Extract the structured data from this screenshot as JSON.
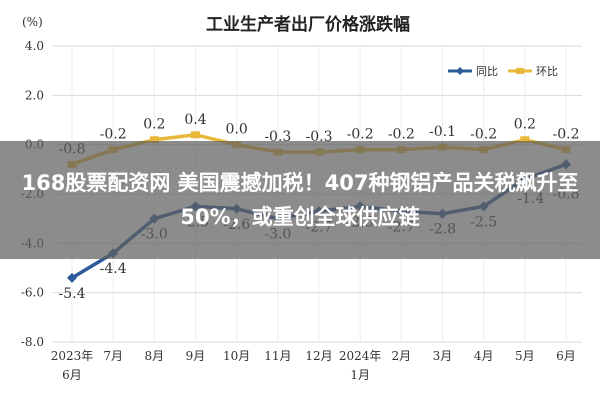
{
  "chart_data": {
    "type": "line",
    "title": "工业生产者出厂价格涨跌幅",
    "ylabel": "(%)",
    "ylim": [
      -8.0,
      4.0
    ],
    "yticks": [
      "4.0",
      "2.0",
      "0.0",
      "-2.0",
      "-4.0",
      "-6.0",
      "-8.0"
    ],
    "yticks_values": [
      4,
      2,
      0,
      -2,
      -4,
      -6,
      -8
    ],
    "categories": [
      "2023年6月",
      "7月",
      "8月",
      "9月",
      "10月",
      "11月",
      "12月",
      "2024年1月",
      "2月",
      "3月",
      "4月",
      "5月",
      "6月"
    ],
    "x_tick_lines": [
      [
        "2023年",
        "6月"
      ],
      [
        "7月"
      ],
      [
        "8月"
      ],
      [
        "9月"
      ],
      [
        "10月"
      ],
      [
        "11月"
      ],
      [
        "12月"
      ],
      [
        "2024年",
        "1月"
      ],
      [
        "2月"
      ],
      [
        "3月"
      ],
      [
        "4月"
      ],
      [
        "5月"
      ],
      [
        "6月"
      ]
    ],
    "legend_position": "top-right",
    "grid": true,
    "series": [
      {
        "name": "同比",
        "color": "#2e5b9a",
        "values": [
          -5.4,
          -4.4,
          -3.0,
          -2.5,
          -2.6,
          -3.0,
          -2.7,
          -2.5,
          -2.7,
          -2.8,
          -2.5,
          -1.4,
          -0.8
        ],
        "labels": [
          "-5.4",
          "-4.4",
          "-3.0",
          "-2.5",
          "-2.6",
          "-3.0",
          "-2.7",
          "-2.5",
          "-2.7",
          "-2.8",
          "-2.5",
          "-1.4",
          "-0.8"
        ]
      },
      {
        "name": "环比",
        "color": "#e8b83a",
        "values": [
          -0.8,
          -0.2,
          0.2,
          0.4,
          0.0,
          -0.3,
          -0.3,
          -0.2,
          -0.2,
          -0.1,
          -0.2,
          0.2,
          -0.2
        ],
        "labels": [
          "-0.8",
          "-0.2",
          "0.2",
          "0.4",
          "0.0",
          "-0.3",
          "-0.3",
          "-0.2",
          "-0.2",
          "-0.1",
          "-0.2",
          "0.2",
          "-0.2"
        ]
      }
    ]
  },
  "overlay": {
    "text": "168股票配资网 美国震撼加税！407种钢铝产品关税飙升至50%，或重创全球供应链"
  }
}
